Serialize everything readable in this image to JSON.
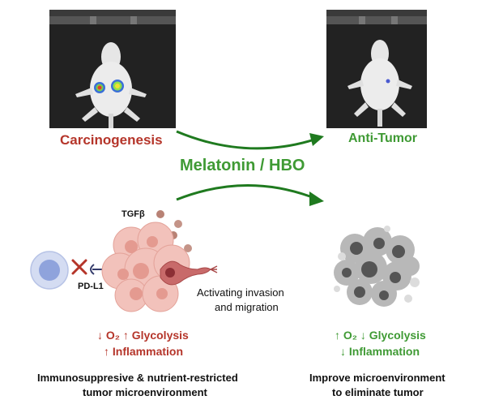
{
  "labels": {
    "left_state": "Carcinogenesis",
    "right_state": "Anti-Tumor",
    "treatment": "Melatonin / HBO",
    "tgf": "TGFβ",
    "pdl1": "PD-L1",
    "invasion_line1": "Activating invasion",
    "invasion_line2": "and migration",
    "left_metab_line1": "↓ O₂  ↑ Glycolysis",
    "left_metab_line2": "↑ Inflammation",
    "right_metab_line1": "↑ O₂ ↓ Glycolysis",
    "right_metab_line2": "↓ Inflammation",
    "left_caption_line1": "Immunosuppresive & nutrient-restricted",
    "left_caption_line2": "tumor microenvironment",
    "right_caption_line1": "Improve microenvironment",
    "right_caption_line2": "to eliminate tumor"
  },
  "colors": {
    "red": "#b5352a",
    "green": "#3f9a34",
    "arrow": "#1f7a1f",
    "tumor_cell": "#e9a49b",
    "tcell": "#8fa3dc"
  }
}
